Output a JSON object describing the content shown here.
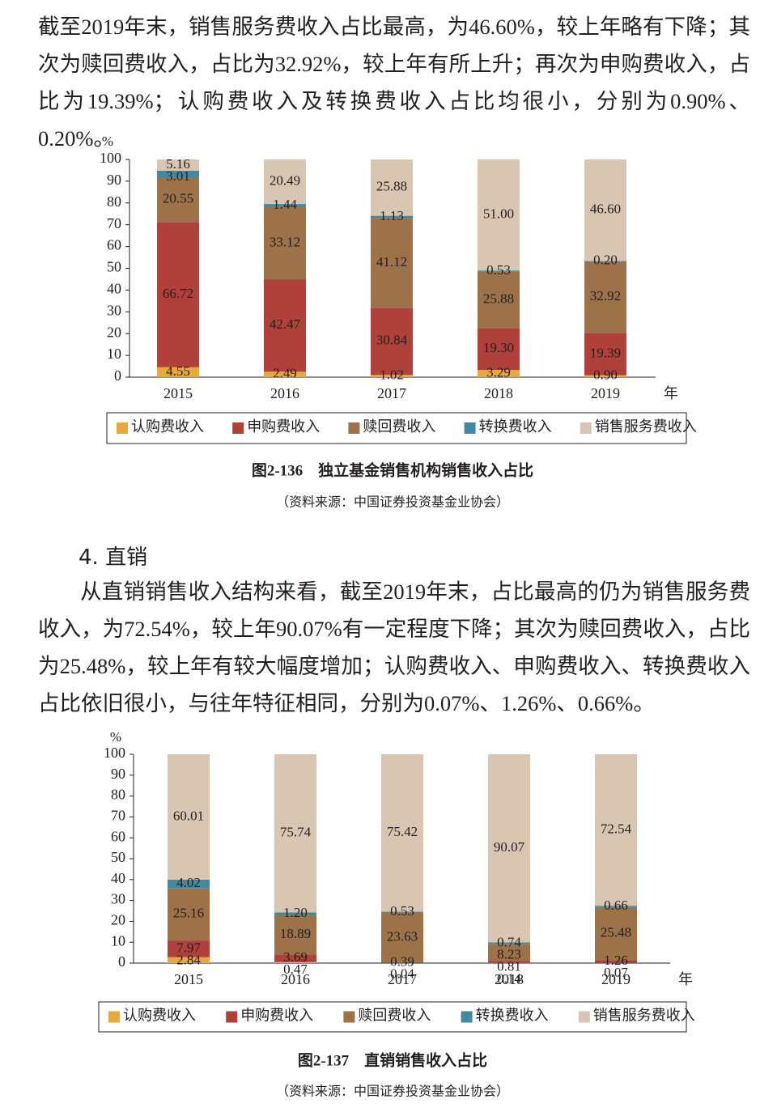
{
  "paragraph_1": "截至2019年末，销售服务费收入占比最高，为46.60%，较上年略有下降；其次为赎回费收入，占比为32.92%，较上年有所上升；再次为申购费收入，占比为19.39%；认购费收入及转换费收入占比均很小，分别为0.90%、0.20%。",
  "section_heading": "4. 直销",
  "paragraph_2": "从直销销售收入结构来看，截至2019年末，占比最高的仍为销售服务费收入，为72.54%，较上年90.07%有一定程度下降；其次为赎回费收入，占比为25.48%，较上年有较大幅度增加；认购费收入、申购费收入、转换费收入占比依旧很小，与往年特征相同，分别为0.07%、1.26%、0.66%。",
  "chart_data": [
    {
      "type": "stacked_bar",
      "title": "图2-136　独立基金销售机构销售收入占比",
      "source": "（资料来源：中国证券投资基金业协会）",
      "y_label": "%",
      "x_label": "年",
      "categories": [
        "2015",
        "2016",
        "2017",
        "2018",
        "2019"
      ],
      "ylim": [
        0,
        100
      ],
      "yticks": [
        0,
        10,
        20,
        30,
        40,
        50,
        60,
        70,
        80,
        90,
        100
      ],
      "series": [
        {
          "name": "认购费收入",
          "color": "#e8a93a",
          "values": [
            4.55,
            2.49,
            1.02,
            3.29,
            0.9
          ],
          "value_labels": [
            "4.55",
            "2.49",
            "1.02",
            "3.29",
            "0.90"
          ]
        },
        {
          "name": "申购费收入",
          "color": "#b0403a",
          "values": [
            66.72,
            42.47,
            30.84,
            19.3,
            19.39
          ],
          "value_labels": [
            "66.72",
            "42.47",
            "30.84",
            "19.30",
            "19.39"
          ]
        },
        {
          "name": "赎回费收入",
          "color": "#9d7248",
          "values": [
            20.55,
            33.12,
            41.12,
            25.88,
            32.92
          ],
          "value_labels": [
            "20.55",
            "33.12",
            "41.12",
            "25.88",
            "32.92"
          ]
        },
        {
          "name": "转换费收入",
          "color": "#3f8aa0",
          "values": [
            3.01,
            1.44,
            1.13,
            0.53,
            0.2
          ],
          "value_labels": [
            "3.01",
            "1.44",
            "1.13",
            "0.53",
            "0.20"
          ]
        },
        {
          "name": "销售服务费收入",
          "color": "#d9c6b2",
          "values": [
            5.16,
            20.49,
            25.88,
            51,
            46.6
          ],
          "value_labels": [
            "5.16",
            "20.49",
            "25.88",
            "51.00",
            "46.60"
          ]
        }
      ]
    },
    {
      "type": "stacked_bar",
      "title": "图2-137　直销销售收入占比",
      "source": "（资料来源：中国证券投资基金业协会）",
      "y_label": "%",
      "x_label": "年",
      "categories": [
        "2015",
        "2016",
        "2017",
        "2018",
        "2019"
      ],
      "ylim": [
        0,
        100
      ],
      "yticks": [
        0,
        10,
        20,
        30,
        40,
        50,
        60,
        70,
        80,
        90,
        100
      ],
      "series": [
        {
          "name": "认购费收入",
          "color": "#e8a93a",
          "values": [
            2.84,
            0.47,
            0.04,
            0.14,
            0.07
          ],
          "value_labels": [
            "2.84",
            "0.47",
            "0.04",
            "0.14",
            "0.07"
          ]
        },
        {
          "name": "申购费收入",
          "color": "#b0403a",
          "values": [
            7.97,
            3.69,
            0.39,
            0.81,
            1.26
          ],
          "value_labels": [
            "7.97",
            "3.69",
            "0.39",
            "0.81",
            "1.26"
          ]
        },
        {
          "name": "赎回费收入",
          "color": "#9d7248",
          "values": [
            25.16,
            18.89,
            23.63,
            8.23,
            25.48
          ],
          "value_labels": [
            "25.16",
            "18.89",
            "23.63",
            "8.23",
            "25.48"
          ]
        },
        {
          "name": "转换费收入",
          "color": "#3f8aa0",
          "values": [
            4.02,
            1.2,
            0.53,
            0.74,
            0.66
          ],
          "value_labels": [
            "4.02",
            "1.20",
            "0.53",
            "0.74",
            "0.66"
          ]
        },
        {
          "name": "销售服务费收入",
          "color": "#d9c6b2",
          "values": [
            60.01,
            75.74,
            75.42,
            90.07,
            72.54
          ],
          "value_labels": [
            "60.01",
            "75.74",
            "75.42",
            "90.07",
            "72.54"
          ]
        }
      ]
    }
  ]
}
